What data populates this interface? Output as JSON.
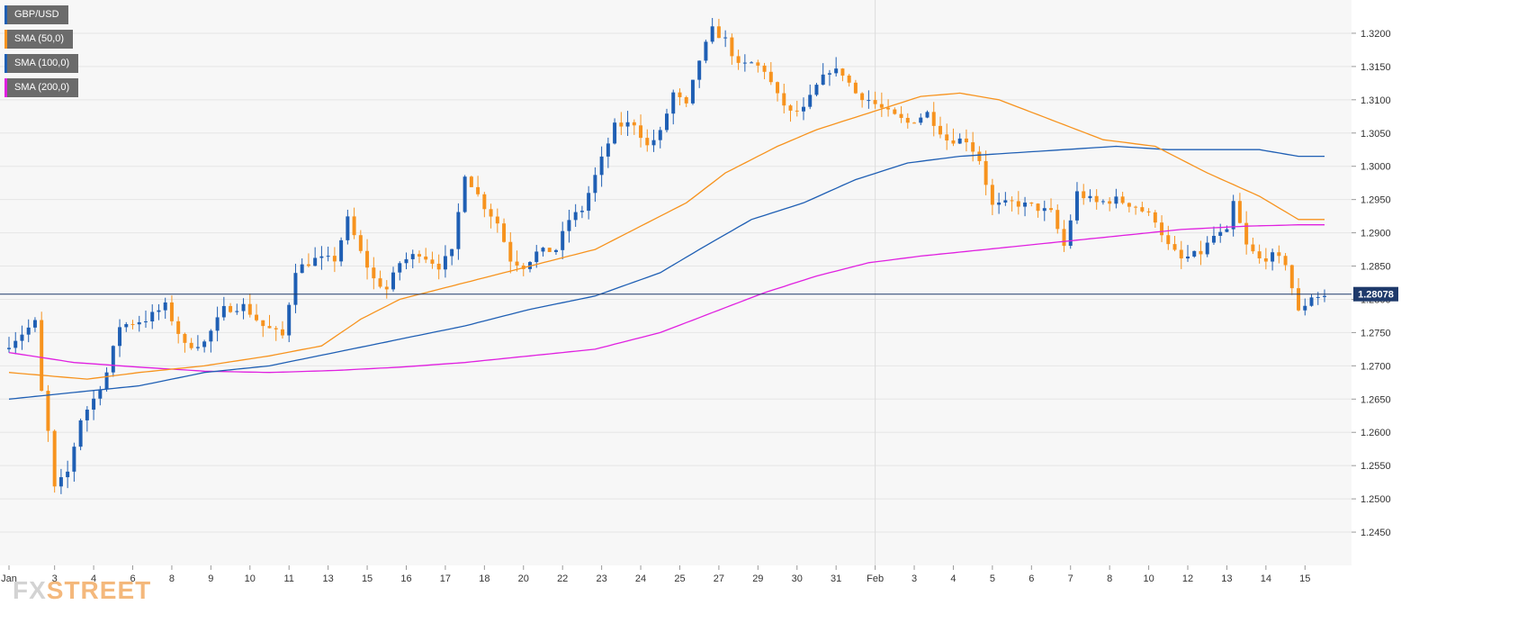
{
  "chart_data": {
    "type": "candlestick",
    "symbol": "GBP/USD",
    "legend": [
      {
        "label": "GBP/USD",
        "color": "#1f5fb4"
      },
      {
        "label": "SMA (50,0)",
        "color": "#f7931e"
      },
      {
        "label": "SMA (100,0)",
        "color": "#1f5fb4"
      },
      {
        "label": "SMA (200,0)",
        "color": "#e020e0"
      }
    ],
    "ylim": [
      1.24,
      1.325
    ],
    "y_ticks": [
      "1.3200",
      "1.3150",
      "1.3100",
      "1.3050",
      "1.3000",
      "1.2950",
      "1.2900",
      "1.2850",
      "1.2800",
      "1.2750",
      "1.2700",
      "1.2650",
      "1.2600",
      "1.2550",
      "1.2500",
      "1.2450"
    ],
    "x_ticks": [
      {
        "label": "Jan",
        "bar": 0
      },
      {
        "label": "3",
        "bar": 7
      },
      {
        "label": "4",
        "bar": 13
      },
      {
        "label": "6",
        "bar": 19
      },
      {
        "label": "8",
        "bar": 25
      },
      {
        "label": "9",
        "bar": 31
      },
      {
        "label": "10",
        "bar": 37
      },
      {
        "label": "11",
        "bar": 43
      },
      {
        "label": "13",
        "bar": 49
      },
      {
        "label": "15",
        "bar": 55
      },
      {
        "label": "16",
        "bar": 61
      },
      {
        "label": "17",
        "bar": 67
      },
      {
        "label": "18",
        "bar": 73
      },
      {
        "label": "20",
        "bar": 79
      },
      {
        "label": "22",
        "bar": 85
      },
      {
        "label": "23",
        "bar": 91
      },
      {
        "label": "24",
        "bar": 97
      },
      {
        "label": "25",
        "bar": 103
      },
      {
        "label": "27",
        "bar": 109
      },
      {
        "label": "29",
        "bar": 115
      },
      {
        "label": "30",
        "bar": 121
      },
      {
        "label": "31",
        "bar": 127
      },
      {
        "label": "Feb",
        "bar": 133
      },
      {
        "label": "3",
        "bar": 139
      },
      {
        "label": "4",
        "bar": 145
      },
      {
        "label": "5",
        "bar": 151
      },
      {
        "label": "6",
        "bar": 157
      },
      {
        "label": "7",
        "bar": 163
      },
      {
        "label": "8",
        "bar": 169
      },
      {
        "label": "10",
        "bar": 175
      },
      {
        "label": "12",
        "bar": 181
      },
      {
        "label": "13",
        "bar": 187
      },
      {
        "label": "14",
        "bar": 193
      },
      {
        "label": "15",
        "bar": 199
      }
    ],
    "bar_count": 203,
    "current_price": 1.28078,
    "current_price_label": "1.28078",
    "month_divider_bar": 133,
    "ohlc_keypoints": [
      [
        0,
        1.2725
      ],
      [
        5,
        1.2765
      ],
      [
        6,
        1.266
      ],
      [
        7,
        1.26
      ],
      [
        8,
        1.2515
      ],
      [
        10,
        1.254
      ],
      [
        12,
        1.262
      ],
      [
        14,
        1.265
      ],
      [
        16,
        1.269
      ],
      [
        18,
        1.276
      ],
      [
        22,
        1.277
      ],
      [
        25,
        1.279
      ],
      [
        28,
        1.273
      ],
      [
        31,
        1.2735
      ],
      [
        34,
        1.2785
      ],
      [
        37,
        1.279
      ],
      [
        40,
        1.276
      ],
      [
        43,
        1.2745
      ],
      [
        45,
        1.2845
      ],
      [
        48,
        1.286
      ],
      [
        51,
        1.286
      ],
      [
        53,
        1.292
      ],
      [
        55,
        1.287
      ],
      [
        57,
        1.283
      ],
      [
        59,
        1.2815
      ],
      [
        61,
        1.2855
      ],
      [
        64,
        1.287
      ],
      [
        67,
        1.285
      ],
      [
        69,
        1.287
      ],
      [
        71,
        1.299
      ],
      [
        74,
        1.294
      ],
      [
        76,
        1.2915
      ],
      [
        78,
        1.286
      ],
      [
        80,
        1.285
      ],
      [
        82,
        1.287
      ],
      [
        85,
        1.2875
      ],
      [
        87,
        1.292
      ],
      [
        89,
        1.2935
      ],
      [
        91,
        1.2985
      ],
      [
        94,
        1.306
      ],
      [
        97,
        1.3065
      ],
      [
        99,
        1.303
      ],
      [
        101,
        1.305
      ],
      [
        103,
        1.311
      ],
      [
        105,
        1.309
      ],
      [
        107,
        1.316
      ],
      [
        109,
        1.3205
      ],
      [
        111,
        1.319
      ],
      [
        113,
        1.315
      ],
      [
        115,
        1.3155
      ],
      [
        117,
        1.3145
      ],
      [
        119,
        1.3105
      ],
      [
        121,
        1.308
      ],
      [
        123,
        1.3085
      ],
      [
        125,
        1.312
      ],
      [
        127,
        1.3145
      ],
      [
        129,
        1.314
      ],
      [
        131,
        1.311
      ],
      [
        133,
        1.31
      ],
      [
        136,
        1.308
      ],
      [
        139,
        1.3065
      ],
      [
        142,
        1.308
      ],
      [
        145,
        1.304
      ],
      [
        148,
        1.304
      ],
      [
        150,
        1.301
      ],
      [
        152,
        1.294
      ],
      [
        155,
        1.2945
      ],
      [
        158,
        1.294
      ],
      [
        161,
        1.293
      ],
      [
        163,
        1.288
      ],
      [
        165,
        1.296
      ],
      [
        168,
        1.2945
      ],
      [
        171,
        1.295
      ],
      [
        174,
        1.294
      ],
      [
        177,
        1.292
      ],
      [
        179,
        1.288
      ],
      [
        181,
        1.286
      ],
      [
        184,
        1.287
      ],
      [
        186,
        1.2895
      ],
      [
        188,
        1.29
      ],
      [
        189,
        1.2945
      ],
      [
        191,
        1.288
      ],
      [
        193,
        1.286
      ],
      [
        195,
        1.2865
      ],
      [
        197,
        1.2855
      ],
      [
        199,
        1.278
      ],
      [
        201,
        1.2805
      ]
    ],
    "sma50_keypoints": [
      [
        0,
        1.269
      ],
      [
        12,
        1.268
      ],
      [
        20,
        1.269
      ],
      [
        30,
        1.27
      ],
      [
        40,
        1.2715
      ],
      [
        48,
        1.273
      ],
      [
        54,
        1.277
      ],
      [
        60,
        1.28
      ],
      [
        70,
        1.2825
      ],
      [
        80,
        1.285
      ],
      [
        90,
        1.2875
      ],
      [
        98,
        1.2915
      ],
      [
        104,
        1.2945
      ],
      [
        110,
        1.299
      ],
      [
        118,
        1.303
      ],
      [
        124,
        1.3055
      ],
      [
        132,
        1.308
      ],
      [
        140,
        1.3105
      ],
      [
        146,
        1.311
      ],
      [
        152,
        1.31
      ],
      [
        160,
        1.307
      ],
      [
        168,
        1.304
      ],
      [
        176,
        1.303
      ],
      [
        184,
        1.299
      ],
      [
        192,
        1.2955
      ],
      [
        198,
        1.292
      ]
    ],
    "sma100_keypoints": [
      [
        0,
        1.265
      ],
      [
        10,
        1.266
      ],
      [
        20,
        1.267
      ],
      [
        30,
        1.269
      ],
      [
        40,
        1.27
      ],
      [
        50,
        1.272
      ],
      [
        60,
        1.274
      ],
      [
        70,
        1.276
      ],
      [
        80,
        1.2785
      ],
      [
        90,
        1.2805
      ],
      [
        100,
        1.284
      ],
      [
        106,
        1.2875
      ],
      [
        114,
        1.292
      ],
      [
        122,
        1.2945
      ],
      [
        130,
        1.298
      ],
      [
        138,
        1.3005
      ],
      [
        146,
        1.3015
      ],
      [
        154,
        1.302
      ],
      [
        162,
        1.3025
      ],
      [
        170,
        1.303
      ],
      [
        178,
        1.3025
      ],
      [
        186,
        1.3025
      ],
      [
        192,
        1.3025
      ],
      [
        198,
        1.3015
      ]
    ],
    "sma200_keypoints": [
      [
        0,
        1.272
      ],
      [
        10,
        1.2705
      ],
      [
        20,
        1.2698
      ],
      [
        30,
        1.2692
      ],
      [
        40,
        1.269
      ],
      [
        50,
        1.2693
      ],
      [
        60,
        1.2698
      ],
      [
        70,
        1.2705
      ],
      [
        80,
        1.2715
      ],
      [
        90,
        1.2725
      ],
      [
        100,
        1.275
      ],
      [
        108,
        1.278
      ],
      [
        116,
        1.281
      ],
      [
        124,
        1.2835
      ],
      [
        132,
        1.2855
      ],
      [
        140,
        1.2865
      ],
      [
        150,
        1.2875
      ],
      [
        160,
        1.2885
      ],
      [
        170,
        1.2895
      ],
      [
        180,
        1.2905
      ],
      [
        190,
        1.291
      ],
      [
        198,
        1.2912
      ]
    ]
  },
  "logo": {
    "fx": "FX",
    "street": "STREET"
  },
  "colors": {
    "up": "#1f5fb4",
    "down": "#f7931e",
    "grid": "#e6e6e6",
    "plot_bg": "#f7f7f7",
    "price_line": "#1f3a6b"
  }
}
